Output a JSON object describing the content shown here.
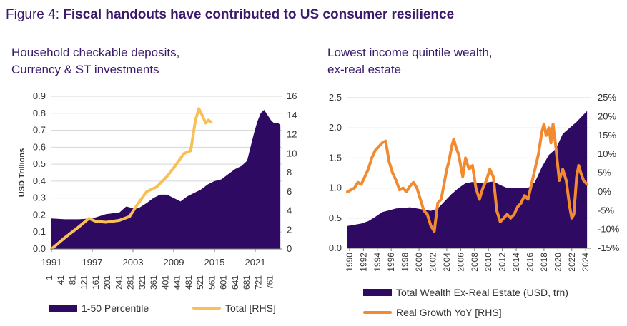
{
  "figure": {
    "lead": "Figure 4: ",
    "title": "Fiscal handouts have contributed to US consumer resilience"
  },
  "colors": {
    "purple": "#2e0a63",
    "yellow": "#f8c057",
    "orange": "#f28a30",
    "title": "#3b1a6b",
    "grid": "#d7d7d7"
  },
  "chart_data": [
    {
      "type": "area",
      "title_line1": "Household checkable deposits,",
      "title_line2": "Currency & ST investments",
      "ylabel": "USD Trillions",
      "ylim": [
        0,
        0.9
      ],
      "y2lim": [
        0,
        16
      ],
      "yticks": [
        "0.0",
        "0.1",
        "0.2",
        "0.3",
        "0.4",
        "0.5",
        "0.6",
        "0.7",
        "0.8",
        "0.9"
      ],
      "y2ticks": [
        "0",
        "2",
        "4",
        "6",
        "8",
        "10",
        "12",
        "14",
        "16"
      ],
      "xticks_year": [
        "1991",
        "1997",
        "2003",
        "2009",
        "2015",
        "2021"
      ],
      "xticks_index": [
        "1",
        "41",
        "81",
        "121",
        "161",
        "201",
        "241",
        "281",
        "321",
        "361",
        "401",
        "441",
        "481",
        "521",
        "561",
        "601",
        "641",
        "681",
        "721",
        "761"
      ],
      "series": [
        {
          "name": "1-50 Percentile",
          "kind": "area",
          "axis": "left",
          "x": [
            1991,
            1993,
            1995,
            1997,
            1999,
            2001,
            2002,
            2003,
            2004,
            2005,
            2006,
            2007,
            2008,
            2009,
            2010,
            2011,
            2012,
            2013,
            2014,
            2015,
            2016,
            2017,
            2018,
            2019,
            2019.8,
            2020.3,
            2020.8,
            2021.3,
            2021.8,
            2022.3,
            2022.8,
            2023.3,
            2023.8,
            2024.3,
            2024.7
          ],
          "values": [
            0.18,
            0.175,
            0.175,
            0.18,
            0.205,
            0.215,
            0.25,
            0.24,
            0.245,
            0.27,
            0.3,
            0.32,
            0.32,
            0.3,
            0.28,
            0.31,
            0.33,
            0.35,
            0.38,
            0.4,
            0.41,
            0.44,
            0.47,
            0.49,
            0.52,
            0.6,
            0.68,
            0.75,
            0.8,
            0.82,
            0.79,
            0.76,
            0.74,
            0.745,
            0.73
          ]
        },
        {
          "name": "Total [RHS]",
          "kind": "line",
          "axis": "right",
          "x": [
            1991,
            1993,
            1995,
            1996.5,
            1997.5,
            1999,
            2001,
            2002.5,
            2003.5,
            2005,
            2006.5,
            2008,
            2009,
            2010.5,
            2011.5,
            2012.2,
            2012.7,
            2013.2,
            2013.7,
            2014.1,
            2014.5
          ],
          "values": [
            0,
            1.2,
            2.3,
            3.2,
            2.9,
            2.8,
            3.0,
            3.4,
            4.5,
            6.0,
            6.5,
            7.6,
            8.5,
            10.0,
            10.3,
            13.5,
            14.7,
            14.0,
            13.2,
            13.5,
            13.3
          ]
        }
      ]
    },
    {
      "type": "area",
      "title_line1": "Lowest income quintile wealth,",
      "title_line2": "ex-real estate",
      "ylim": [
        0,
        2.5
      ],
      "y2lim": [
        -15,
        25
      ],
      "yticks": [
        "0.0",
        "0.5",
        "1.0",
        "1.5",
        "2.0",
        "2.5"
      ],
      "y2ticks": [
        "-15%",
        "-10%",
        "-5%",
        "0%",
        "5%",
        "10%",
        "15%",
        "20%",
        "25%"
      ],
      "xticks": [
        "1990",
        "1992",
        "1994",
        "1996",
        "1998",
        "2000",
        "2002",
        "2004",
        "2006",
        "2008",
        "2010",
        "2012",
        "2014",
        "2016",
        "2018",
        "2020",
        "2022",
        "2024"
      ],
      "series": [
        {
          "name": "Total Wealth Ex-Real Estate (USD, trn)",
          "kind": "area",
          "axis": "left",
          "x": [
            1990,
            1991,
            1992,
            1993,
            1994,
            1995,
            1996,
            1997,
            1998,
            1999,
            2000,
            2001,
            2002,
            2003,
            2004,
            2005,
            2006,
            2007,
            2008,
            2009,
            2010,
            2011,
            2012,
            2013,
            2014,
            2015,
            2016,
            2017,
            2018,
            2019,
            2020,
            2021,
            2022,
            2023,
            2024,
            2024.5
          ],
          "values": [
            0.37,
            0.39,
            0.41,
            0.45,
            0.52,
            0.6,
            0.63,
            0.66,
            0.67,
            0.68,
            0.66,
            0.64,
            0.62,
            0.66,
            0.78,
            0.9,
            1.0,
            1.08,
            1.1,
            1.08,
            1.09,
            1.11,
            1.05,
            1.0,
            1.0,
            1.0,
            1.0,
            1.1,
            1.35,
            1.55,
            1.65,
            1.9,
            2.0,
            2.1,
            2.22,
            2.28
          ]
        },
        {
          "name": "Real Growth YoY [RHS]",
          "kind": "line",
          "axis": "right",
          "x": [
            1990,
            1990.5,
            1991,
            1991.5,
            1992,
            1992.5,
            1993,
            1993.5,
            1994,
            1994.5,
            1995,
            1995.5,
            1996,
            1996.5,
            1997,
            1997.5,
            1998,
            1998.5,
            1999,
            1999.5,
            2000,
            2000.5,
            2001,
            2001.5,
            2002,
            2002.5,
            2003,
            2003.5,
            2004,
            2004.3,
            2004.6,
            2005,
            2005.3,
            2005.6,
            2006,
            2006.3,
            2006.6,
            2007,
            2007.5,
            2008,
            2008.5,
            2009,
            2009.5,
            2010,
            2010.5,
            2011,
            2011.5,
            2012,
            2012.5,
            2013,
            2013.5,
            2014,
            2014.5,
            2015,
            2015.5,
            2016,
            2016.5,
            2017,
            2017.5,
            2018,
            2018.3,
            2018.6,
            2019,
            2019.3,
            2019.6,
            2020,
            2020.5,
            2021,
            2021.5,
            2022,
            2022.3,
            2022.6,
            2023,
            2023.3,
            2023.6,
            2024,
            2024.5
          ],
          "values": [
            0,
            0.5,
            1,
            2.5,
            2,
            4,
            6,
            9,
            11,
            12,
            13,
            13.5,
            8,
            5,
            3,
            0.5,
            1,
            0,
            1.5,
            2.5,
            1,
            -2,
            -5,
            -6,
            -9,
            -10.5,
            -3,
            -2,
            3,
            6,
            8,
            12,
            14,
            12,
            10,
            7,
            4,
            9,
            6,
            7,
            1,
            -2,
            1,
            3,
            6,
            4,
            -5,
            -8,
            -7,
            -6,
            -7,
            -6,
            -4,
            -3,
            -1,
            -2,
            2,
            6,
            10,
            16,
            18,
            15,
            17,
            13,
            18,
            12,
            3,
            6,
            3,
            -4,
            -7,
            -6,
            4,
            7,
            5,
            3,
            2
          ]
        }
      ]
    }
  ]
}
